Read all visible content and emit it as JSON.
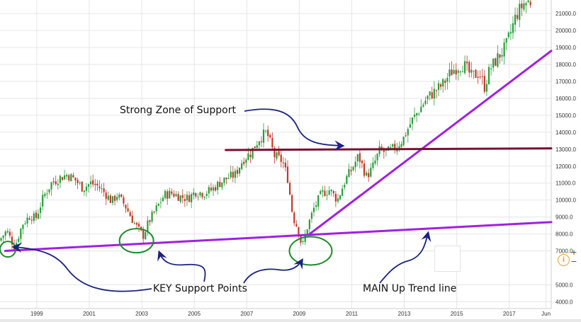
{
  "chart_data": {
    "type": "candlestick",
    "x_ticks": [
      "1999",
      "2001",
      "2003",
      "2005",
      "2007",
      "2009",
      "2011",
      "2013",
      "2015",
      "2017",
      "Jun"
    ],
    "y_ticks": [
      "4000.0",
      "5000.0",
      "7000.0",
      "8000.0",
      "9000.0",
      "10000.0",
      "11000.0",
      "12000.0",
      "13000.0",
      "14000.0",
      "15000.0",
      "16000.0",
      "17000.0",
      "18000.0",
      "19000.0",
      "20000.0",
      "21000.0"
    ],
    "y_range": [
      3600,
      21800
    ],
    "x_range": [
      1997.6,
      2018.6
    ],
    "grid": true,
    "price_path": [
      [
        1997.6,
        7600
      ],
      [
        1997.9,
        8200
      ],
      [
        1998.2,
        7200
      ],
      [
        1998.5,
        8600
      ],
      [
        1998.8,
        9100
      ],
      [
        1999.0,
        8900
      ],
      [
        1999.3,
        10200
      ],
      [
        1999.6,
        11000
      ],
      [
        1999.9,
        11300
      ],
      [
        2000.2,
        11500
      ],
      [
        2000.5,
        11200
      ],
      [
        2000.8,
        10700
      ],
      [
        2001.1,
        11000
      ],
      [
        2001.4,
        10800
      ],
      [
        2001.7,
        10300
      ],
      [
        2001.9,
        9900
      ],
      [
        2002.1,
        10300
      ],
      [
        2002.4,
        9700
      ],
      [
        2002.7,
        8800
      ],
      [
        2002.9,
        8300
      ],
      [
        2003.1,
        7900
      ],
      [
        2003.3,
        8700
      ],
      [
        2003.6,
        9500
      ],
      [
        2003.9,
        10300
      ],
      [
        2004.2,
        10400
      ],
      [
        2004.5,
        10200
      ],
      [
        2004.8,
        10100
      ],
      [
        2005.1,
        10500
      ],
      [
        2005.4,
        10400
      ],
      [
        2005.7,
        10600
      ],
      [
        2006.0,
        11000
      ],
      [
        2006.3,
        11300
      ],
      [
        2006.6,
        11500
      ],
      [
        2006.9,
        12400
      ],
      [
        2007.2,
        12800
      ],
      [
        2007.5,
        13600
      ],
      [
        2007.8,
        14000
      ],
      [
        2008.1,
        12600
      ],
      [
        2008.4,
        12300
      ],
      [
        2008.6,
        11300
      ],
      [
        2008.8,
        9000
      ],
      [
        2009.0,
        8300
      ],
      [
        2009.15,
        7200
      ],
      [
        2009.35,
        8400
      ],
      [
        2009.6,
        9500
      ],
      [
        2009.9,
        10400
      ],
      [
        2010.2,
        10600
      ],
      [
        2010.5,
        10000
      ],
      [
        2010.8,
        11200
      ],
      [
        2011.0,
        11700
      ],
      [
        2011.3,
        12600
      ],
      [
        2011.6,
        11400
      ],
      [
        2011.8,
        11800
      ],
      [
        2012.1,
        12900
      ],
      [
        2012.4,
        12800
      ],
      [
        2012.7,
        13100
      ],
      [
        2013.0,
        13600
      ],
      [
        2013.3,
        14600
      ],
      [
        2013.6,
        15300
      ],
      [
        2013.9,
        16000
      ],
      [
        2014.2,
        16400
      ],
      [
        2014.5,
        16800
      ],
      [
        2014.8,
        17500
      ],
      [
        2015.0,
        17800
      ],
      [
        2015.3,
        18000
      ],
      [
        2015.6,
        17300
      ],
      [
        2015.9,
        17500
      ],
      [
        2016.1,
        16700
      ],
      [
        2016.3,
        17700
      ],
      [
        2016.6,
        18400
      ],
      [
        2016.9,
        19000
      ],
      [
        2017.1,
        19900
      ],
      [
        2017.3,
        20900
      ],
      [
        2017.6,
        21600
      ],
      [
        2017.8,
        21700
      ]
    ],
    "lines": [
      {
        "name": "main-uptrend-line",
        "color": "#a020e0",
        "from": [
          1997.8,
          7000
        ],
        "to": [
          2018.6,
          8700
        ]
      },
      {
        "name": "secondary-uptrend-line",
        "color": "#a020e0",
        "from": [
          2009.4,
          8000
        ],
        "to": [
          2018.6,
          18800
        ]
      },
      {
        "name": "support-zone-line",
        "color": "#7a1030",
        "from": [
          2006.2,
          12950
        ],
        "to": [
          2018.6,
          13050
        ]
      }
    ],
    "annotations": [
      {
        "text": "Strong Zone of Support"
      },
      {
        "text": "KEY Support Points"
      },
      {
        "text": "MAIN Up Trend line"
      }
    ],
    "support_points": [
      {
        "x": 1997.9,
        "y": 7100
      },
      {
        "x": 2002.8,
        "y": 7600
      },
      {
        "x": 2009.3,
        "y": 7000
      }
    ],
    "colors": {
      "up": "#2a9d3a",
      "down": "#c0392b",
      "trend": "#a020e0",
      "support": "#7a1030",
      "circle": "#1f8a2a",
      "arrow": "#1a237e"
    }
  },
  "controls": {
    "zoom_in": "+",
    "zoom_out": "−",
    "info": "i"
  }
}
